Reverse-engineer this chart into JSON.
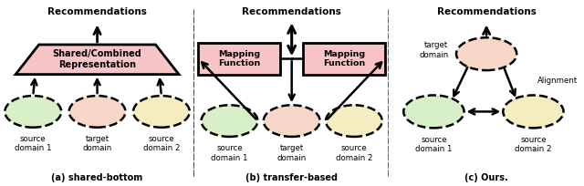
{
  "fig_width": 6.4,
  "fig_height": 2.04,
  "bg_color": "#ffffff",
  "panel_a": {
    "title": "Recommendations",
    "subtitle": "(a) shared-bottom",
    "trapezoid_color": "#f7c5c5",
    "trapezoid_text": "Shared/Combined\nRepresentation",
    "ellipse_colors": [
      "#d8f0c8",
      "#f7d8c8",
      "#f5ecc0"
    ],
    "ellipse_labels": [
      "source\ndomain 1",
      "target\ndomain",
      "source\ndomain 2"
    ]
  },
  "panel_b": {
    "title": "Recommendations",
    "subtitle": "(b) transfer-based",
    "box_color": "#f7c5c5",
    "ellipse_colors": [
      "#d8f0c8",
      "#f7d8c8",
      "#f5ecc0"
    ],
    "ellipse_labels": [
      "source\ndomain 1",
      "target\ndomain",
      "source\ndomain 2"
    ]
  },
  "panel_c": {
    "title": "Recommendations",
    "subtitle": "(c) Ours.",
    "ellipse_colors": [
      "#f7d8c8",
      "#d8f0c8",
      "#f5ecc0"
    ],
    "ellipse_labels": [
      "target\ndomain",
      "source\ndomain 1",
      "source\ndomain 2"
    ],
    "alignment_label": "Alignment"
  }
}
